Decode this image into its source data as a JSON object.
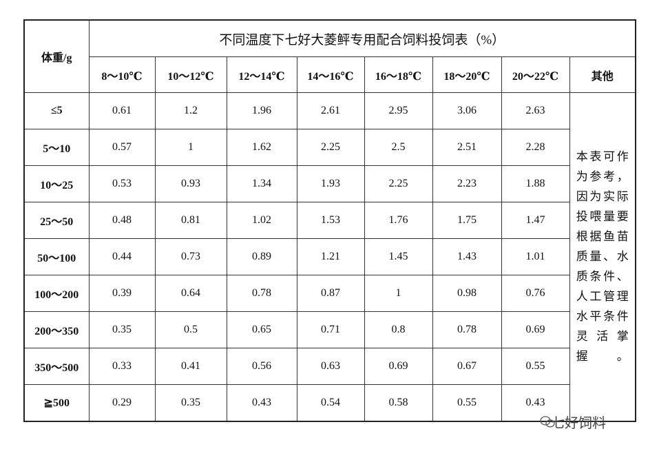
{
  "table": {
    "title": "不同温度下七好大菱鲆专用配合饲料投饲表（%）",
    "row_header": "体重/g",
    "columns": [
      "8～10℃",
      "10～12℃",
      "12～14℃",
      "14～16℃",
      "16～18℃",
      "18～20℃",
      "20～22℃"
    ],
    "other_header": "其他",
    "rows": [
      {
        "weight": "≤5",
        "values": [
          0.61,
          1.2,
          1.96,
          2.61,
          2.95,
          3.06,
          2.63
        ]
      },
      {
        "weight": "5～10",
        "values": [
          0.57,
          1,
          1.62,
          2.25,
          2.5,
          2.51,
          2.28
        ]
      },
      {
        "weight": "10～25",
        "values": [
          0.53,
          0.93,
          1.34,
          1.93,
          2.25,
          2.23,
          1.88
        ]
      },
      {
        "weight": "25～50",
        "values": [
          0.48,
          0.81,
          1.02,
          1.53,
          1.76,
          1.75,
          1.47
        ]
      },
      {
        "weight": "50～100",
        "values": [
          0.44,
          0.73,
          0.89,
          1.21,
          1.45,
          1.43,
          1.01
        ]
      },
      {
        "weight": "100～200",
        "values": [
          0.39,
          0.64,
          0.78,
          0.87,
          1,
          0.98,
          0.76
        ]
      },
      {
        "weight": "200～350",
        "values": [
          0.35,
          0.5,
          0.65,
          0.71,
          0.8,
          0.78,
          0.69
        ]
      },
      {
        "weight": "350～500",
        "values": [
          0.33,
          0.41,
          0.56,
          0.63,
          0.69,
          0.67,
          0.55
        ]
      },
      {
        "weight": "≧500",
        "values": [
          0.29,
          0.35,
          0.43,
          0.54,
          0.58,
          0.55,
          0.43
        ]
      }
    ],
    "note": [
      "本表可作",
      "为参考，",
      "因为实际",
      "投喂量要",
      "根据鱼苗",
      "质量、水",
      "质条件、",
      "人工管理",
      "水平条件",
      "灵活掌",
      "握。"
    ]
  },
  "watermark": "七好饲料"
}
